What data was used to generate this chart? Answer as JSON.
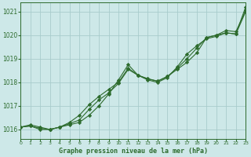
{
  "title": "Graphe pression niveau de la mer (hPa)",
  "background_color": "#cde8e8",
  "grid_color": "#a8cccc",
  "line_color": "#2d6b2d",
  "xlim": [
    0,
    23
  ],
  "ylim": [
    1015.6,
    1021.4
  ],
  "yticks": [
    1016,
    1017,
    1018,
    1019,
    1020,
    1021
  ],
  "xticks": [
    0,
    1,
    2,
    3,
    4,
    5,
    6,
    7,
    8,
    9,
    10,
    11,
    12,
    13,
    14,
    15,
    16,
    17,
    18,
    19,
    20,
    21,
    22,
    23
  ],
  "series": [
    [
      1016.1,
      1016.2,
      1016.1,
      1016.0,
      1016.1,
      1016.2,
      1016.3,
      1016.6,
      1017.0,
      1017.5,
      1018.1,
      1018.75,
      1018.3,
      1018.15,
      1018.05,
      1018.25,
      1018.55,
      1018.85,
      1019.25,
      1019.9,
      1020.0,
      1020.2,
      1020.15,
      1021.05
    ],
    [
      1016.1,
      1016.15,
      1016.05,
      1016.0,
      1016.1,
      1016.25,
      1016.4,
      1016.85,
      1017.25,
      1017.55,
      1017.95,
      1018.55,
      1018.3,
      1018.15,
      1018.05,
      1018.25,
      1018.6,
      1019.0,
      1019.45,
      1019.9,
      1020.0,
      1020.1,
      1020.05,
      1021.2
    ],
    [
      1016.1,
      1016.15,
      1016.0,
      1016.0,
      1016.1,
      1016.3,
      1016.6,
      1017.05,
      1017.4,
      1017.7,
      1018.0,
      1018.6,
      1018.3,
      1018.1,
      1018.0,
      1018.2,
      1018.65,
      1019.2,
      1019.55,
      1019.85,
      1019.95,
      1020.1,
      1020.05,
      1021.0
    ]
  ]
}
